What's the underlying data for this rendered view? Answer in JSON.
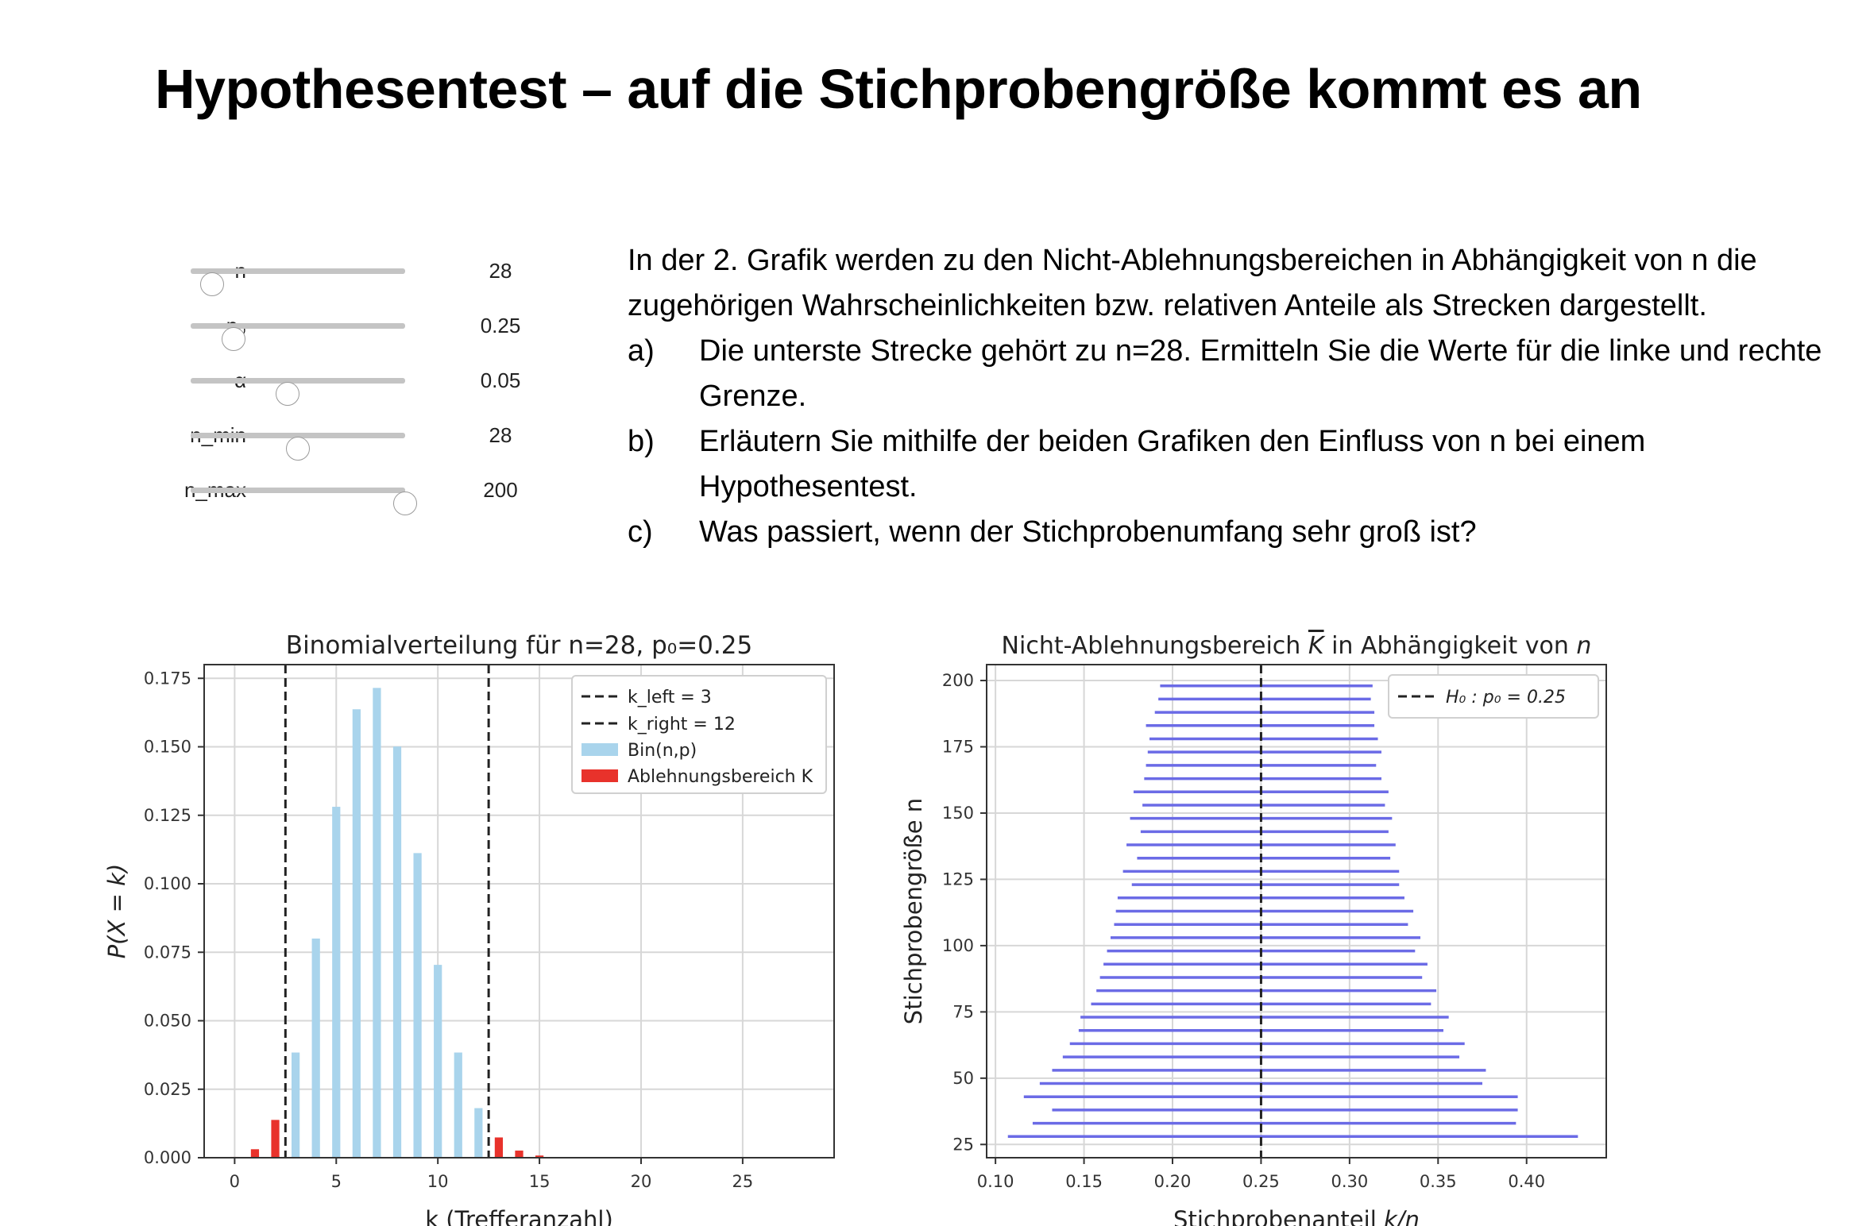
{
  "page": {
    "title": "Hypothesentest – auf die Stichprobengröße kommt es an"
  },
  "sliders": [
    {
      "label": "n",
      "value": "28",
      "fraction": 0.1
    },
    {
      "label": "p₀",
      "value": "0.25",
      "fraction": 0.2
    },
    {
      "label": "α",
      "value": "0.05",
      "fraction": 0.45
    },
    {
      "label": "n_min",
      "value": "28",
      "fraction": 0.5
    },
    {
      "label": "n_max",
      "value": "200",
      "fraction": 1.0
    }
  ],
  "text": {
    "intro": "In der 2. Grafik werden zu den Nicht-Ablehnungsbereichen in Abhängigkeit von n die zugehörigen Wahrscheinlichkeiten bzw. relativen Anteile als Strecken dargestellt.",
    "items": [
      {
        "label": "a)",
        "text": "Die unterste Strecke gehört zu n=28. Ermitteln Sie die Werte für die linke und rechte Grenze."
      },
      {
        "label": "b)",
        "text": "Erläutern Sie mithilfe der beiden Grafiken den Einfluss von n bei einem Hypothesentest."
      },
      {
        "label": "c)",
        "text": "Was passiert, wenn der Stichprobenumfang sehr groß ist?"
      }
    ]
  },
  "chart_data": [
    {
      "type": "bar",
      "title": "Binomialverteilung für n=28, p₀=0.25",
      "xlabel": "k (Trefferanzahl)",
      "ylabel": "P(X = k)",
      "xlim": [
        -1.5,
        29.5
      ],
      "ylim": [
        0,
        0.18
      ],
      "xticks": [
        "0",
        "5",
        "10",
        "15",
        "20",
        "25"
      ],
      "xtick_values": [
        0,
        5,
        10,
        15,
        20,
        25
      ],
      "yticks": [
        "0.000",
        "0.025",
        "0.050",
        "0.075",
        "0.100",
        "0.125",
        "0.150",
        "0.175"
      ],
      "ytick_values": [
        0,
        0.025,
        0.05,
        0.075,
        0.1,
        0.125,
        0.15,
        0.175
      ],
      "grid": true,
      "legend_position": "top-right",
      "legend": [
        "k_left = 3",
        "k_right = 12",
        "Bin(n,p)",
        "Ablehnungsbereich K"
      ],
      "k": [
        0,
        1,
        2,
        3,
        4,
        5,
        6,
        7,
        8,
        9,
        10,
        11,
        12,
        13,
        14,
        15,
        16,
        17,
        18,
        19,
        20,
        21,
        22,
        23,
        24,
        25,
        26,
        27,
        28
      ],
      "values": [
        0.0003,
        0.0031,
        0.0138,
        0.0384,
        0.08,
        0.1281,
        0.1637,
        0.1715,
        0.1501,
        0.1112,
        0.0704,
        0.0384,
        0.0181,
        0.0074,
        0.0026,
        0.0008,
        0.0002,
        0.0001,
        0,
        0,
        0,
        0,
        0,
        0,
        0,
        0,
        0,
        0,
        0
      ],
      "k_left": 3,
      "k_right": 12,
      "colors": {
        "bin": "#a9d4ec",
        "reject": "#e8322b",
        "vline": "#222222"
      }
    },
    {
      "type": "range",
      "title_prefix": "Nicht-Ablehnungsbereich ",
      "title_symbol": "K",
      "title_suffix": " in Abhängigkeit von ",
      "title_var": "n",
      "xlabel_main": "Stichprobenanteil ",
      "xlabel_var": "k/n",
      "ylabel": "Stichprobengröße n",
      "xlim": [
        0.095,
        0.445
      ],
      "ylim": [
        20,
        206
      ],
      "xticks": [
        "0.10",
        "0.15",
        "0.20",
        "0.25",
        "0.30",
        "0.35",
        "0.40"
      ],
      "xtick_values": [
        0.1,
        0.15,
        0.2,
        0.25,
        0.3,
        0.35,
        0.4
      ],
      "yticks": [
        "25",
        "50",
        "75",
        "100",
        "125",
        "150",
        "175",
        "200"
      ],
      "ytick_values": [
        25,
        50,
        75,
        100,
        125,
        150,
        175,
        200
      ],
      "grid": true,
      "legend_position": "top-right",
      "legend": [
        "H₀ : p₀ = 0.25"
      ],
      "h0": 0.25,
      "color": "#6b6be6",
      "segments": [
        [
          28,
          0.107,
          0.429
        ],
        [
          33,
          0.121,
          0.394
        ],
        [
          38,
          0.132,
          0.395
        ],
        [
          43,
          0.116,
          0.395
        ],
        [
          48,
          0.125,
          0.375
        ],
        [
          53,
          0.132,
          0.377
        ],
        [
          58,
          0.138,
          0.362
        ],
        [
          63,
          0.142,
          0.365
        ],
        [
          68,
          0.147,
          0.353
        ],
        [
          73,
          0.148,
          0.356
        ],
        [
          78,
          0.154,
          0.346
        ],
        [
          83,
          0.157,
          0.349
        ],
        [
          88,
          0.159,
          0.341
        ],
        [
          93,
          0.161,
          0.344
        ],
        [
          98,
          0.163,
          0.337
        ],
        [
          103,
          0.165,
          0.34
        ],
        [
          108,
          0.167,
          0.333
        ],
        [
          113,
          0.168,
          0.336
        ],
        [
          118,
          0.169,
          0.331
        ],
        [
          123,
          0.177,
          0.328
        ],
        [
          128,
          0.172,
          0.328
        ],
        [
          133,
          0.18,
          0.323
        ],
        [
          138,
          0.174,
          0.326
        ],
        [
          143,
          0.182,
          0.322
        ],
        [
          148,
          0.176,
          0.324
        ],
        [
          153,
          0.183,
          0.32
        ],
        [
          158,
          0.178,
          0.322
        ],
        [
          163,
          0.184,
          0.318
        ],
        [
          168,
          0.185,
          0.315
        ],
        [
          173,
          0.186,
          0.318
        ],
        [
          178,
          0.187,
          0.316
        ],
        [
          183,
          0.185,
          0.314
        ],
        [
          188,
          0.19,
          0.314
        ],
        [
          193,
          0.192,
          0.312
        ],
        [
          198,
          0.193,
          0.313
        ]
      ]
    }
  ]
}
